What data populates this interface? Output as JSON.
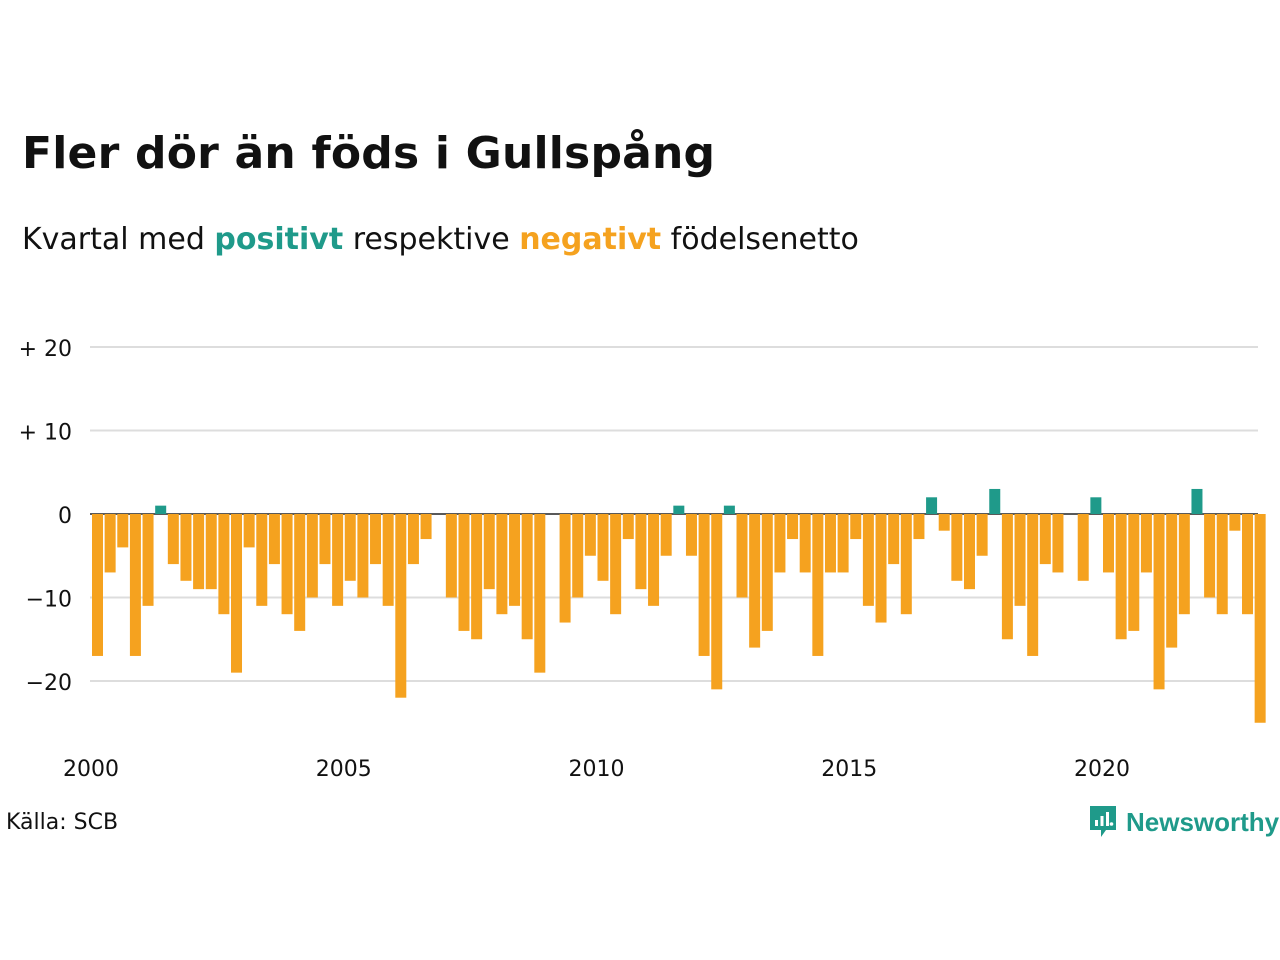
{
  "title": "Fler dör än föds i Gullspång",
  "subtitle": {
    "prefix": "Kvartal med ",
    "positive_word": "positivt",
    "middle": " respektive ",
    "negative_word": "negativt",
    "suffix": " födelsenetto"
  },
  "source": "Källa: SCB",
  "brand": "Newsworthy",
  "colors": {
    "positive": "#1f9a8a",
    "negative": "#f5a21f",
    "grid": "#dddddd"
  },
  "chart_data": {
    "type": "bar",
    "x_start": 2000.0,
    "x_step": 0.25,
    "x_ticks": [
      2000,
      2005,
      2010,
      2015,
      2020
    ],
    "x_tick_labels": [
      "2000",
      "2005",
      "2010",
      "2015",
      "2020"
    ],
    "y_ticks": [
      20,
      10,
      0,
      -10,
      -20
    ],
    "y_tick_labels": [
      "+ 20",
      "+ 10",
      "0",
      "−10",
      "−20"
    ],
    "ylim": [
      -25,
      20
    ],
    "grid": true,
    "values": [
      -17,
      -7,
      -4,
      -17,
      -11,
      1,
      -6,
      -8,
      -9,
      -9,
      -12,
      -19,
      -4,
      -11,
      -6,
      -12,
      -14,
      -10,
      -6,
      -11,
      -8,
      -10,
      -6,
      -11,
      -22,
      -6,
      -3,
      0,
      -10,
      -14,
      -15,
      -9,
      -12,
      -11,
      -15,
      -19,
      0,
      -13,
      -10,
      -5,
      -8,
      -12,
      -3,
      -9,
      -11,
      -5,
      1,
      -5,
      -17,
      -21,
      1,
      -10,
      -16,
      -14,
      -7,
      -3,
      -7,
      -17,
      -7,
      -7,
      -3,
      -11,
      -13,
      -6,
      -12,
      -3,
      2,
      -2,
      -8,
      -9,
      -5,
      3,
      -15,
      -11,
      -17,
      -6,
      -7,
      0,
      -8,
      2,
      -7,
      -15,
      -14,
      -7,
      -21,
      -16,
      -12,
      3,
      -10,
      -12,
      -2,
      -12,
      -25
    ]
  }
}
